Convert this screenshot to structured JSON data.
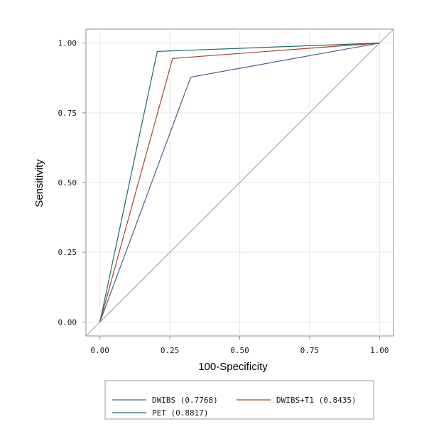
{
  "chart_data": {
    "type": "line",
    "title": "",
    "xlabel": "100-Specificity",
    "ylabel": "Sensitivity",
    "xlim": [
      -0.05,
      1.05
    ],
    "ylim": [
      -0.05,
      1.05
    ],
    "x_ticks": [
      "0.00",
      "0.25",
      "0.50",
      "0.75",
      "1.00"
    ],
    "y_ticks": [
      "0.00",
      "0.25",
      "0.50",
      "0.75",
      "1.00"
    ],
    "grid": true,
    "legend_position": "bottom",
    "reference_line": {
      "x": [
        0,
        1
      ],
      "y": [
        0,
        1
      ],
      "color": "#a6a6a6"
    },
    "series": [
      {
        "name": "DWIBS  (0.7768)",
        "color": "#4a5e8c",
        "x": [
          0,
          0.325,
          1
        ],
        "y": [
          0,
          0.878,
          1
        ]
      },
      {
        "name": "DWIBS+T1  (0.8435)",
        "color": "#a0442c",
        "x": [
          0,
          0.26,
          1
        ],
        "y": [
          0,
          0.945,
          1
        ]
      },
      {
        "name": "PET  (0.8817)",
        "color": "#1b6b6b",
        "x": [
          0,
          0.205,
          1
        ],
        "y": [
          0,
          0.97,
          1
        ]
      }
    ]
  }
}
